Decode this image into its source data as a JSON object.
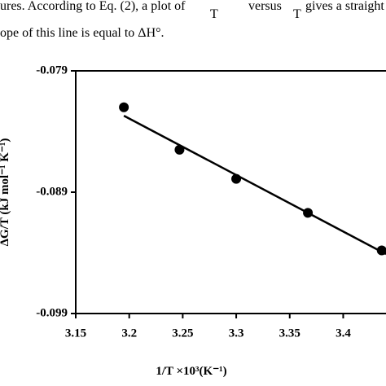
{
  "page_text": {
    "line1_start": "ures. According to Eq. (2), a plot of",
    "line1_frac1": "T",
    "line1_mid": "versus",
    "line1_frac2": "T",
    "line1_end": "gives a straight line",
    "line2": "ope of this line is equal to ΔH°."
  },
  "chart_data": {
    "type": "scatter",
    "x_label": "1/T ×10³(K⁻¹)",
    "y_label": "ΔG/T (kJ mol⁻¹ K⁻¹)",
    "xlim": [
      3.15,
      3.44
    ],
    "xticks": [
      3.15,
      3.2,
      3.25,
      3.3,
      3.35,
      3.4
    ],
    "ylim": [
      -0.099,
      -0.079
    ],
    "yticks": [
      -0.099,
      -0.089,
      -0.079
    ],
    "series": [
      {
        "type": "scatter",
        "color": "#000000",
        "x": [
          3.195,
          3.247,
          3.3,
          3.367,
          3.436
        ],
        "values": [
          -0.082,
          -0.0855,
          -0.0879,
          -0.0907,
          -0.0938
        ]
      },
      {
        "type": "line",
        "color": "#000000",
        "x": [
          3.195,
          3.44
        ],
        "values": [
          -0.0827,
          -0.0941
        ]
      }
    ]
  }
}
